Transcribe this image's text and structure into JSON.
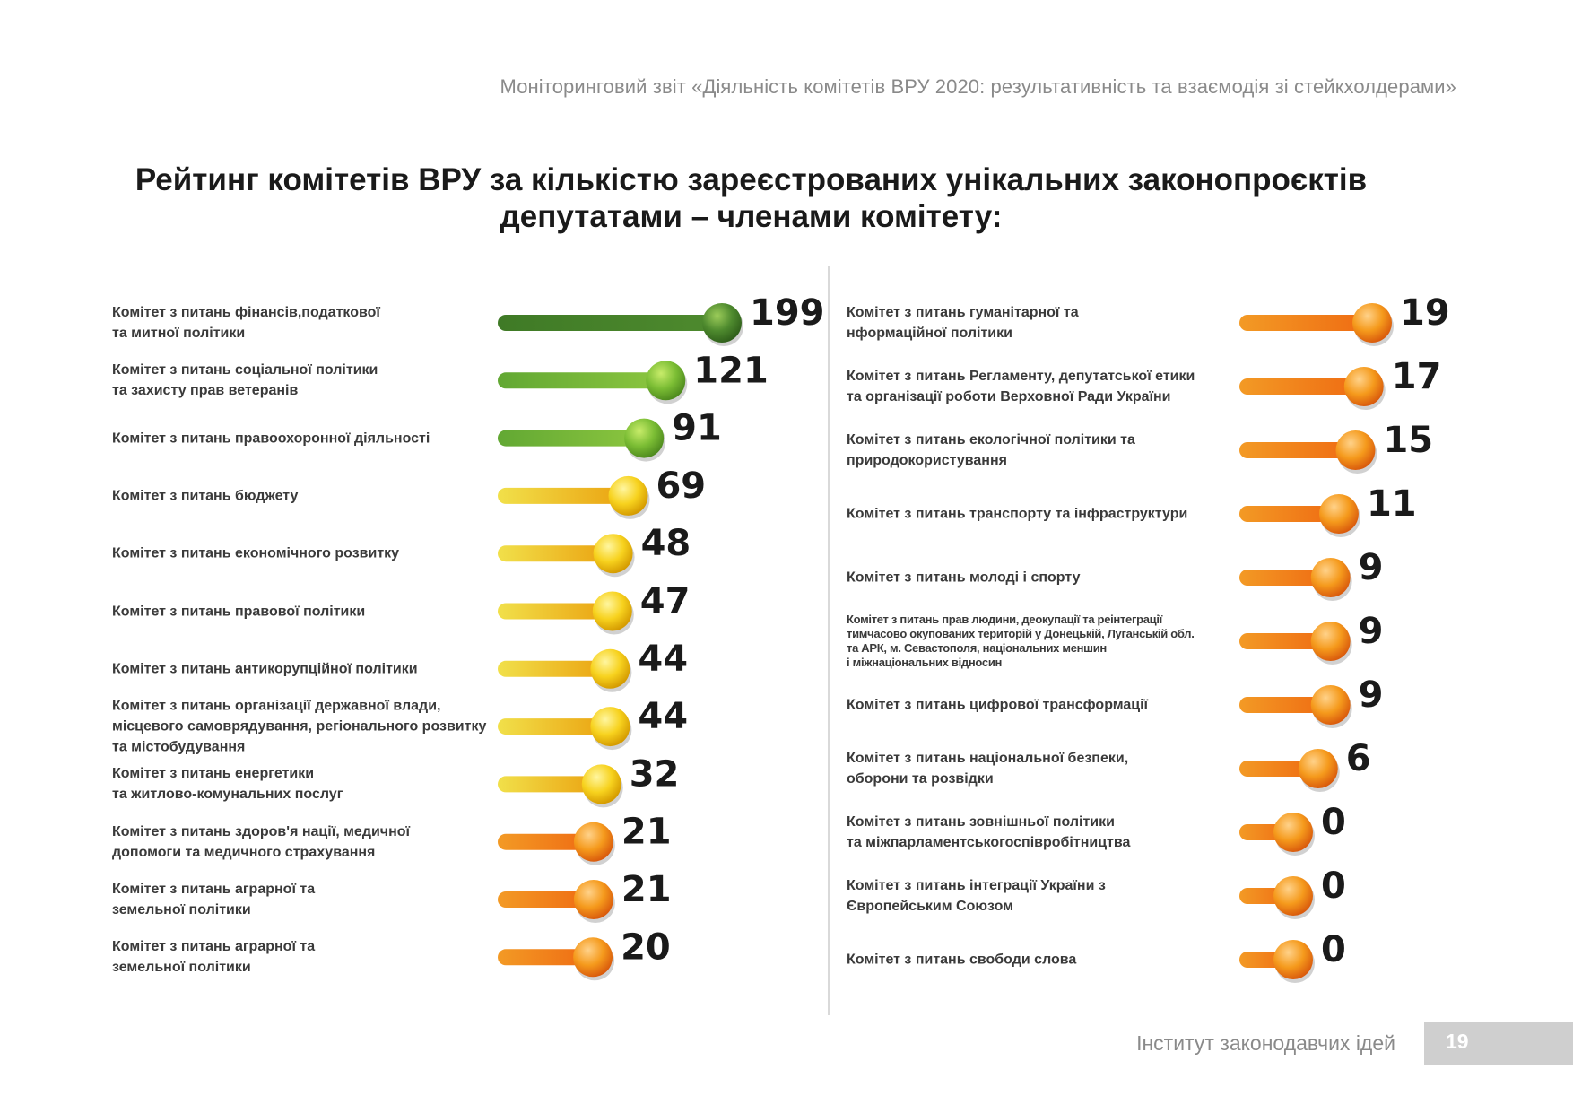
{
  "header": {
    "text": "Моніторинговий звіт «Діяльність комітетів ВРУ 2020: результативність та взаємодія зі стейкхолдерами»"
  },
  "footer": {
    "institute": "Інститут законодавчих ідей",
    "page_number": "19"
  },
  "colors": {
    "green_dark": "#4e8a2e",
    "green": "#7bbd34",
    "yellow": "#f2c500",
    "orange": "#f07c10"
  },
  "chart_data": {
    "type": "bar",
    "title": "Рейтинг комітетів ВРУ за кількістю зареєстрованих унікальних законопроєктів депутатами – членами комітету:",
    "title_lines": [
      "Рейтинг комітетів ВРУ за кількістю зареєстрованих унікальних законопроєктів",
      "депутатами – членами комітету:"
    ],
    "xlabel": "",
    "ylabel": "",
    "xlim": [
      0,
      199
    ],
    "columns": [
      {
        "rows": [
          {
            "label_lines": [
              "Комітет з питань фінансів,податкової",
              "та митної політики"
            ],
            "value": 199,
            "value_label": "199",
            "color": "green_dark"
          },
          {
            "label_lines": [
              "Комітет з питань соціальної політики",
              "та захисту прав ветеранів"
            ],
            "value": 121,
            "value_label": "121",
            "color": "green"
          },
          {
            "label_lines": [
              "Комітет з питань правоохоронної діяльності"
            ],
            "value": 91,
            "value_label": "91",
            "color": "green"
          },
          {
            "label_lines": [
              "Комітет з питань бюджету"
            ],
            "value": 69,
            "value_label": "69",
            "color": "yellow"
          },
          {
            "label_lines": [
              "Комітет з питань економічного розвитку"
            ],
            "value": 48,
            "value_label": "48",
            "color": "yellow"
          },
          {
            "label_lines": [
              "Комітет з питань правової політики"
            ],
            "value": 47,
            "value_label": "47",
            "color": "yellow"
          },
          {
            "label_lines": [
              "Комітет з питань антикорупційної політики"
            ],
            "value": 44,
            "value_label": "44",
            "color": "yellow"
          },
          {
            "label_lines": [
              "Комітет з питань організації державної влади,",
              "місцевого самоврядування, регіонального розвитку",
              "та містобудування"
            ],
            "value": 44,
            "value_label": "44",
            "color": "yellow"
          },
          {
            "label_lines": [
              "Комітет з питань енергетики",
              "та житлово-комунальних послуг"
            ],
            "value": 32,
            "value_label": "32",
            "color": "yellow"
          },
          {
            "label_lines": [
              "Комітет з питань здоров'я нації, медичної",
              "допомоги та медичного страхування"
            ],
            "value": 21,
            "value_label": "21",
            "color": "orange"
          },
          {
            "label_lines": [
              "Комітет з питань аграрної та",
              "земельної політики"
            ],
            "value": 21,
            "value_label": "21",
            "color": "orange"
          },
          {
            "label_lines": [
              "Комітет з питань аграрної та",
              "земельної політики"
            ],
            "value": 20,
            "value_label": "20",
            "color": "orange"
          }
        ]
      },
      {
        "rows": [
          {
            "label_lines": [
              "Комітет з питань гуманітарної та",
              "нформаційної політики"
            ],
            "value": 19,
            "value_label": "19",
            "color": "orange"
          },
          {
            "label_lines": [
              "Комітет з питань Регламенту, депутатської етики",
              "та організації роботи Верховної Ради України"
            ],
            "value": 17,
            "value_label": "17",
            "color": "orange"
          },
          {
            "label_lines": [
              "Комітет з питань екологічної політики та",
              "природокористування"
            ],
            "value": 15,
            "value_label": "15",
            "color": "orange"
          },
          {
            "label_lines": [
              "Комітет з питань транспорту та інфраструктури"
            ],
            "value": 11,
            "value_label": "11",
            "color": "orange"
          },
          {
            "label_lines": [
              "Комітет з питань молоді і спорту"
            ],
            "value": 9,
            "value_label": "9",
            "color": "orange"
          },
          {
            "label_lines": [
              "Комітет з питань прав людини, деокупації та реінтеграції",
              "тимчасово окупованих територій у Донецькій, Луганській обл.",
              "та АРК, м. Севастополя, національних меншин",
              "і міжнаціональних відносин"
            ],
            "value": 9,
            "value_label": "9",
            "color": "orange",
            "small": true
          },
          {
            "label_lines": [
              "Комітет з питань цифрової трансформації"
            ],
            "value": 9,
            "value_label": "9",
            "color": "orange"
          },
          {
            "label_lines": [
              "Комітет з питань національної безпеки,",
              "оборони та розвідки"
            ],
            "value": 6,
            "value_label": "6",
            "color": "orange"
          },
          {
            "label_lines": [
              "Комітет з питань зовнішньої політики",
              "та міжпарламентськогоспівробітництва"
            ],
            "value": 0,
            "value_label": "0",
            "color": "orange"
          },
          {
            "label_lines": [
              "Комітет з питань інтеграції України з",
              "Європейським Союзом"
            ],
            "value": 0,
            "value_label": "0",
            "color": "orange"
          },
          {
            "label_lines": [
              "Комітет з питань свободи слова"
            ],
            "value": 0,
            "value_label": "0",
            "color": "orange"
          }
        ]
      }
    ]
  }
}
